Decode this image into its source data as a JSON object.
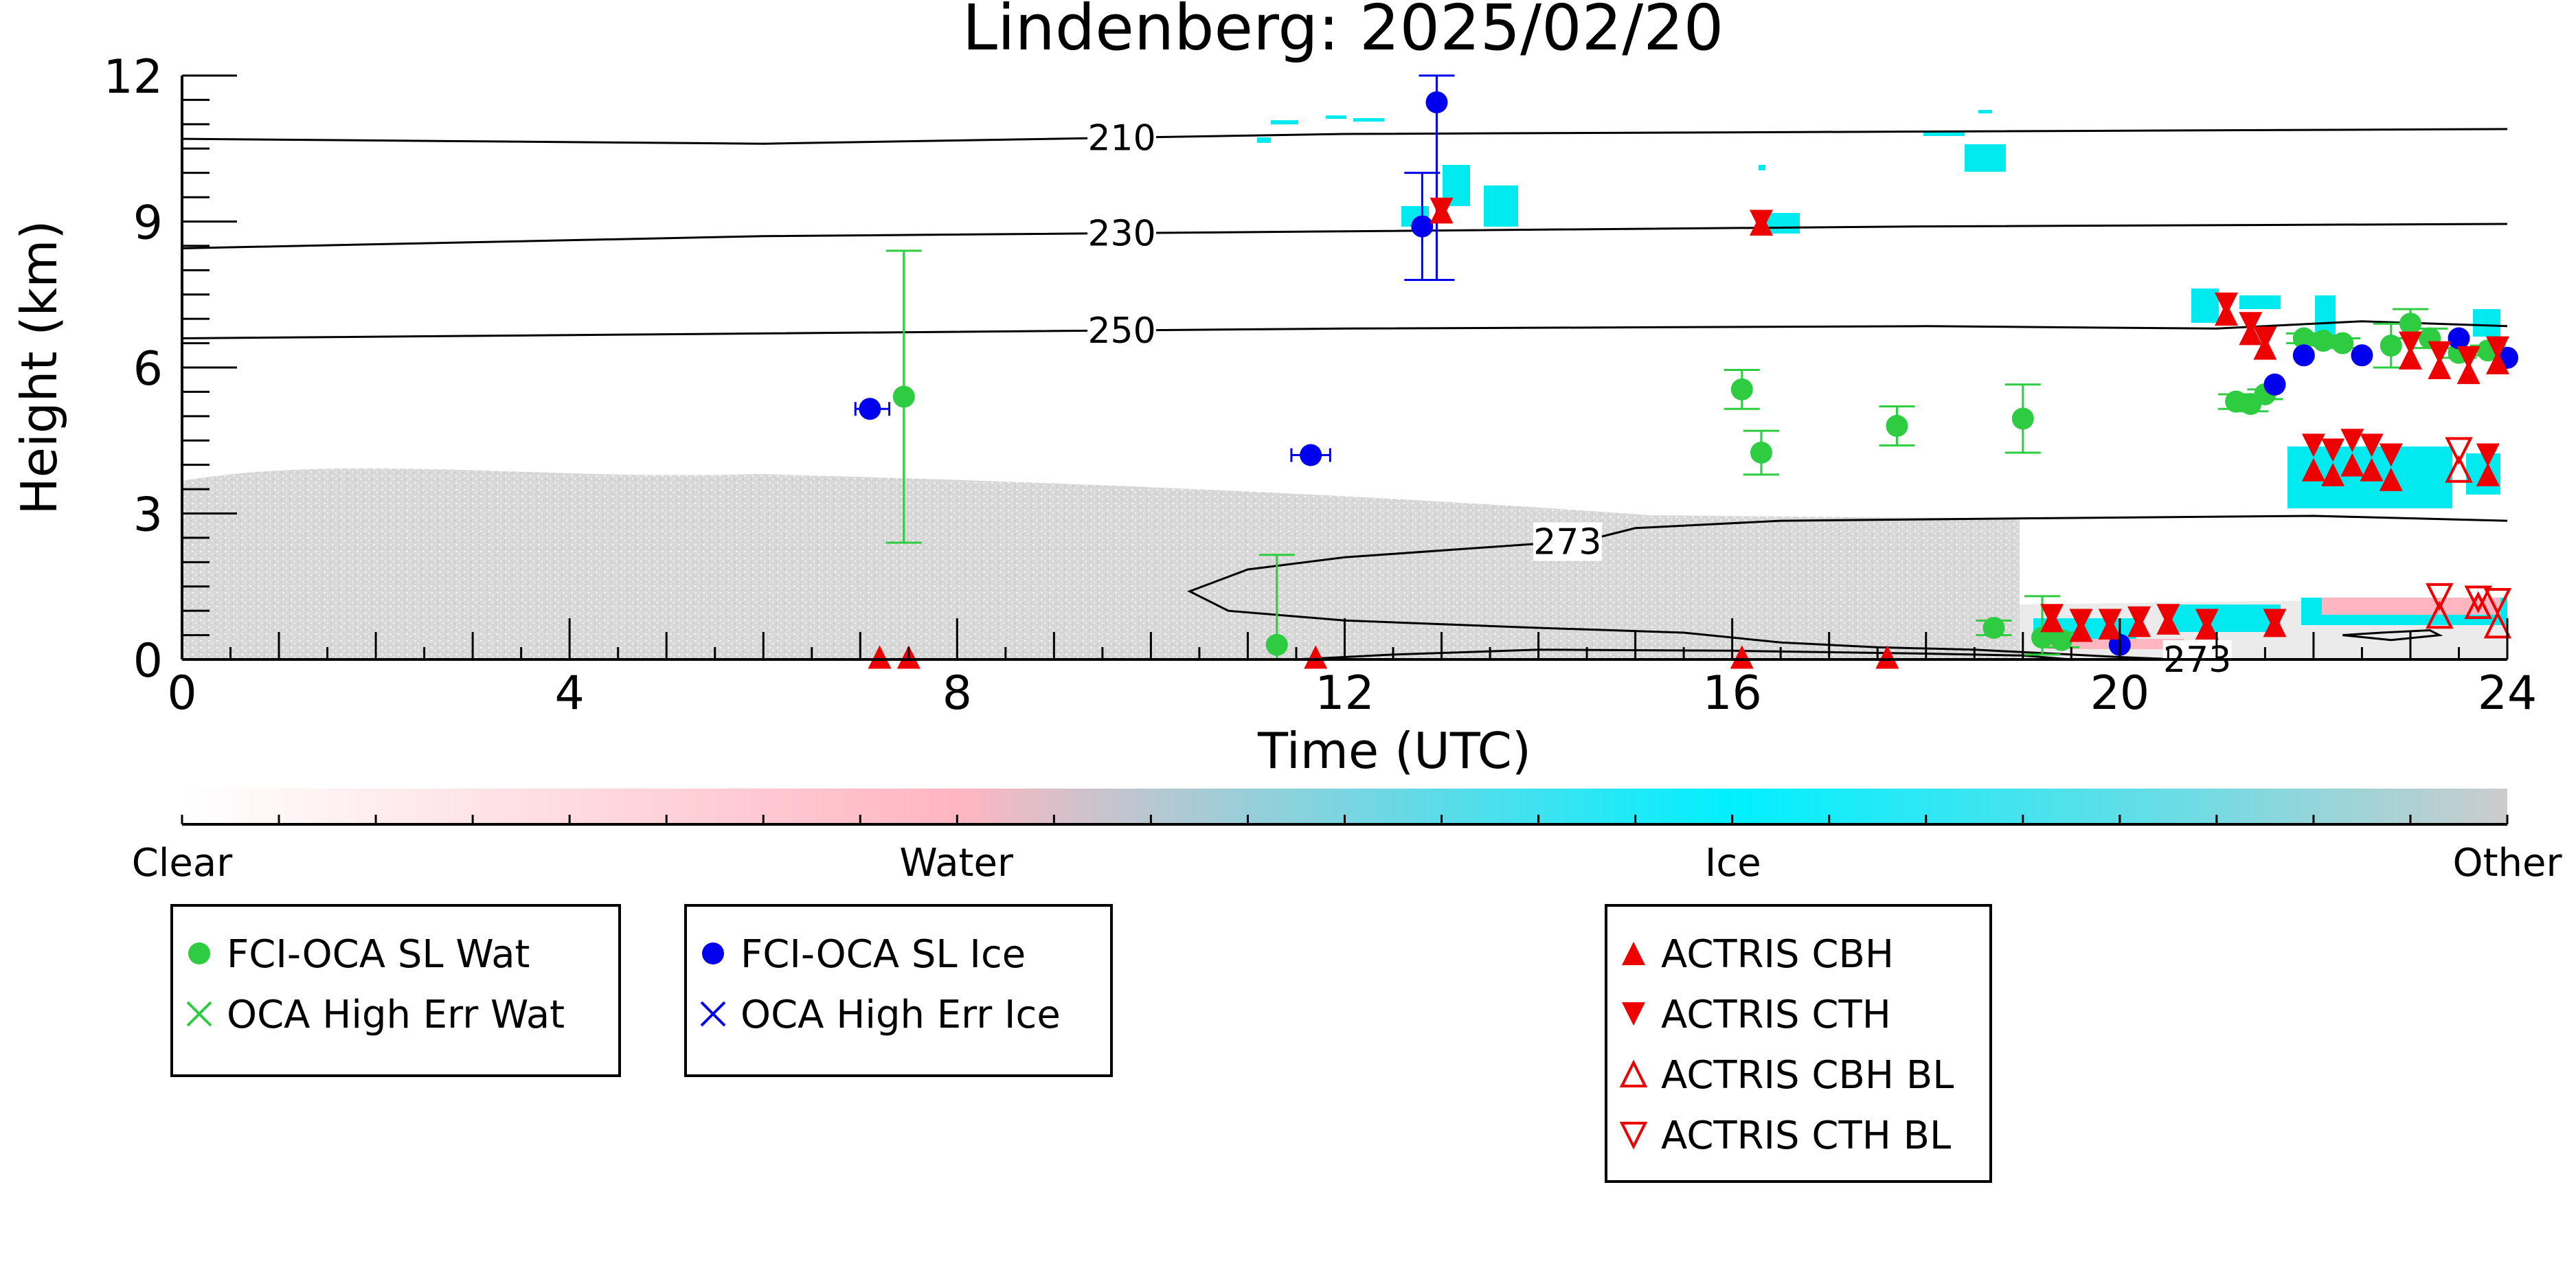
{
  "chart_data": {
    "type": "scatter",
    "title": "Lindenberg: 2025/02/20",
    "xlabel": "Time (UTC)",
    "ylabel": "Height (km)",
    "xlim": [
      0,
      24
    ],
    "ylim": [
      0,
      12
    ],
    "x_ticks": [
      0,
      4,
      8,
      12,
      16,
      20,
      24
    ],
    "y_ticks": [
      0,
      3,
      6,
      9,
      12
    ],
    "colorbar": {
      "labels": [
        {
          "text": "Clear",
          "pos": 0.0
        },
        {
          "text": "Water",
          "pos": 0.333
        },
        {
          "text": "Ice",
          "pos": 0.667
        },
        {
          "text": "Other",
          "pos": 1.0
        }
      ],
      "stops": [
        {
          "pos": 0.0,
          "color": "#ffffff"
        },
        {
          "pos": 0.333,
          "color": "#ffb6c1"
        },
        {
          "pos": 0.42,
          "color": "#b4c8d2"
        },
        {
          "pos": 0.667,
          "color": "#00f0ff"
        },
        {
          "pos": 0.85,
          "color": "#66dde6"
        },
        {
          "pos": 1.0,
          "color": "#cccccc"
        }
      ]
    },
    "contours": [
      {
        "label": "210",
        "label_x": 9.7,
        "points": [
          [
            0,
            10.7
          ],
          [
            6,
            10.6
          ],
          [
            12,
            10.8
          ],
          [
            18,
            10.85
          ],
          [
            24,
            10.9
          ]
        ]
      },
      {
        "label": "230",
        "label_x": 9.7,
        "points": [
          [
            0,
            8.45
          ],
          [
            6,
            8.7
          ],
          [
            12,
            8.8
          ],
          [
            18,
            8.9
          ],
          [
            24,
            8.95
          ]
        ]
      },
      {
        "label": "250",
        "label_x": 9.7,
        "points": [
          [
            0,
            6.6
          ],
          [
            6,
            6.7
          ],
          [
            12,
            6.8
          ],
          [
            18,
            6.85
          ],
          [
            21,
            6.8
          ],
          [
            22.5,
            6.95
          ],
          [
            24,
            6.85
          ]
        ]
      },
      {
        "label": "273",
        "label_x": 14.3,
        "points": [
          [
            24,
            2.85
          ],
          [
            22,
            2.95
          ],
          [
            19,
            2.9
          ],
          [
            16.5,
            2.85
          ],
          [
            15,
            2.7
          ],
          [
            14.5,
            2.45
          ],
          [
            12,
            2.1
          ],
          [
            11,
            1.85
          ],
          [
            10.4,
            1.4
          ],
          [
            10.8,
            1.0
          ],
          [
            12,
            0.8
          ],
          [
            14,
            0.65
          ],
          [
            15.5,
            0.55
          ],
          [
            16.5,
            0.35
          ],
          [
            17.5,
            0.25
          ],
          [
            18.5,
            0.2
          ],
          [
            19.5,
            0.1
          ],
          [
            20,
            0.05
          ],
          [
            20.6,
            0.0
          ]
        ]
      },
      {
        "label": "273",
        "label_x": 20.8,
        "points": [
          [
            11.5,
            0.0
          ],
          [
            12.5,
            0.1
          ],
          [
            14,
            0.2
          ],
          [
            16,
            0.18
          ],
          [
            18,
            0.12
          ],
          [
            19,
            0.08
          ],
          [
            19.5,
            0.0
          ]
        ]
      },
      {
        "label": "",
        "label_x": null,
        "points": [
          [
            22.3,
            0.5
          ],
          [
            22.7,
            0.55
          ],
          [
            23.2,
            0.6
          ],
          [
            23.3,
            0.5
          ],
          [
            22.8,
            0.4
          ],
          [
            22.3,
            0.5
          ]
        ]
      }
    ],
    "series": [
      {
        "name": "FCI-OCA SL Wat",
        "color": "#2ecc40",
        "marker": "circle",
        "points": [
          {
            "x": 7.45,
            "y": 5.4,
            "lo": 2.4,
            "hi": 8.4
          },
          {
            "x": 11.3,
            "y": 0.3,
            "lo": 0.0,
            "hi": 2.15
          },
          {
            "x": 16.1,
            "y": 5.55,
            "lo": 5.15,
            "hi": 5.95
          },
          {
            "x": 16.3,
            "y": 4.25,
            "lo": 3.8,
            "hi": 4.7
          },
          {
            "x": 17.7,
            "y": 4.8,
            "lo": 4.4,
            "hi": 5.2
          },
          {
            "x": 19.0,
            "y": 4.95,
            "lo": 4.25,
            "hi": 5.65
          },
          {
            "x": 18.7,
            "y": 0.65,
            "lo": 0.5,
            "hi": 0.8
          },
          {
            "x": 19.2,
            "y": 0.45,
            "lo": 0.1,
            "hi": 1.3
          },
          {
            "x": 19.4,
            "y": 0.4,
            "lo": 0.25,
            "hi": 0.55
          },
          {
            "x": 21.2,
            "y": 5.3,
            "lo": 5.15,
            "hi": 5.45
          },
          {
            "x": 21.35,
            "y": 5.25,
            "lo": 5.1,
            "hi": 5.4
          },
          {
            "x": 21.5,
            "y": 5.45,
            "lo": 5.35,
            "hi": 5.55
          },
          {
            "x": 21.9,
            "y": 6.6,
            "lo": 6.5,
            "hi": 6.7
          },
          {
            "x": 22.1,
            "y": 6.55,
            "lo": 6.45,
            "hi": 6.65
          },
          {
            "x": 22.3,
            "y": 6.5,
            "lo": 6.4,
            "hi": 6.6
          },
          {
            "x": 22.8,
            "y": 6.45,
            "lo": 6.0,
            "hi": 6.9
          },
          {
            "x": 23.0,
            "y": 6.9,
            "lo": 6.6,
            "hi": 7.2
          },
          {
            "x": 23.2,
            "y": 6.6,
            "lo": 6.4,
            "hi": 6.8
          },
          {
            "x": 23.5,
            "y": 6.3,
            "lo": 6.2,
            "hi": 6.4
          },
          {
            "x": 23.8,
            "y": 6.35,
            "lo": 6.25,
            "hi": 6.45
          }
        ]
      },
      {
        "name": "OCA High Err Wat",
        "color": "#2ecc40",
        "marker": "x",
        "points": []
      },
      {
        "name": "FCI-OCA SL Ice",
        "color": "#0000ee",
        "marker": "circle",
        "points": [
          {
            "x": 7.1,
            "y": 5.15,
            "xlo": 6.95,
            "xhi": 7.3
          },
          {
            "x": 11.65,
            "y": 4.2,
            "xlo": 11.45,
            "xhi": 11.85
          },
          {
            "x": 12.8,
            "y": 8.9,
            "lo": 7.8,
            "hi": 10.0
          },
          {
            "x": 12.95,
            "y": 11.45,
            "lo": 7.8,
            "hi": 12.0
          },
          {
            "x": 20.0,
            "y": 0.3
          },
          {
            "x": 21.6,
            "y": 5.65
          },
          {
            "x": 21.9,
            "y": 6.25
          },
          {
            "x": 22.5,
            "y": 6.25
          },
          {
            "x": 23.5,
            "y": 6.6
          },
          {
            "x": 24.0,
            "y": 6.2
          }
        ]
      },
      {
        "name": "OCA High Err Ice",
        "color": "#0000ee",
        "marker": "x",
        "points": []
      },
      {
        "name": "ACTRIS CBH",
        "color": "#ee0000",
        "marker": "triangle-up",
        "points": [
          {
            "x": 7.2,
            "y": 0.05
          },
          {
            "x": 7.5,
            "y": 0.05
          },
          {
            "x": 11.7,
            "y": 0.05
          },
          {
            "x": 13.0,
            "y": 9.2
          },
          {
            "x": 16.3,
            "y": 8.95
          },
          {
            "x": 16.1,
            "y": 0.05
          },
          {
            "x": 17.6,
            "y": 0.05
          },
          {
            "x": 19.3,
            "y": 0.8
          },
          {
            "x": 19.6,
            "y": 0.6
          },
          {
            "x": 19.9,
            "y": 0.65
          },
          {
            "x": 20.2,
            "y": 0.7
          },
          {
            "x": 20.5,
            "y": 0.75
          },
          {
            "x": 20.9,
            "y": 0.65
          },
          {
            "x": 21.6,
            "y": 0.7
          },
          {
            "x": 21.1,
            "y": 7.1
          },
          {
            "x": 21.35,
            "y": 6.7
          },
          {
            "x": 21.5,
            "y": 6.4
          },
          {
            "x": 22.0,
            "y": 3.9
          },
          {
            "x": 22.2,
            "y": 3.8
          },
          {
            "x": 22.4,
            "y": 4.0
          },
          {
            "x": 22.6,
            "y": 3.9
          },
          {
            "x": 22.8,
            "y": 3.7
          },
          {
            "x": 23.0,
            "y": 6.2
          },
          {
            "x": 23.3,
            "y": 6.0
          },
          {
            "x": 23.6,
            "y": 5.9
          },
          {
            "x": 23.9,
            "y": 6.1
          },
          {
            "x": 23.8,
            "y": 3.8
          }
        ]
      },
      {
        "name": "ACTRIS CTH",
        "color": "#ee0000",
        "marker": "triangle-down",
        "points": [
          {
            "x": 13.0,
            "y": 9.25
          },
          {
            "x": 16.3,
            "y": 9.0
          },
          {
            "x": 19.3,
            "y": 0.9
          },
          {
            "x": 19.6,
            "y": 0.8
          },
          {
            "x": 19.9,
            "y": 0.8
          },
          {
            "x": 20.2,
            "y": 0.85
          },
          {
            "x": 20.5,
            "y": 0.9
          },
          {
            "x": 20.9,
            "y": 0.8
          },
          {
            "x": 21.6,
            "y": 0.8
          },
          {
            "x": 21.1,
            "y": 7.3
          },
          {
            "x": 21.35,
            "y": 6.9
          },
          {
            "x": 21.5,
            "y": 6.6
          },
          {
            "x": 22.0,
            "y": 4.4
          },
          {
            "x": 22.2,
            "y": 4.3
          },
          {
            "x": 22.4,
            "y": 4.5
          },
          {
            "x": 22.6,
            "y": 4.4
          },
          {
            "x": 22.8,
            "y": 4.2
          },
          {
            "x": 23.0,
            "y": 6.5
          },
          {
            "x": 23.3,
            "y": 6.3
          },
          {
            "x": 23.6,
            "y": 6.2
          },
          {
            "x": 23.9,
            "y": 6.4
          },
          {
            "x": 23.8,
            "y": 4.2
          }
        ]
      },
      {
        "name": "ACTRIS CBH BL",
        "color": "#ee0000",
        "marker": "triangle-up-open",
        "points": [
          {
            "x": 23.3,
            "y": 0.9
          },
          {
            "x": 23.5,
            "y": 3.9
          },
          {
            "x": 23.9,
            "y": 0.7
          },
          {
            "x": 23.7,
            "y": 1.1
          }
        ]
      },
      {
        "name": "ACTRIS CTH BL",
        "color": "#ee0000",
        "marker": "triangle-down-open",
        "points": [
          {
            "x": 23.3,
            "y": 1.3
          },
          {
            "x": 23.5,
            "y": 4.3
          },
          {
            "x": 23.9,
            "y": 1.2
          },
          {
            "x": 23.7,
            "y": 1.25
          }
        ]
      }
    ],
    "legends": [
      {
        "items": [
          "FCI-OCA SL Wat",
          "OCA High Err Wat"
        ]
      },
      {
        "items": [
          "FCI-OCA SL Ice",
          "OCA High Err Ice"
        ]
      },
      {
        "items": [
          "ACTRIS CBH",
          "ACTRIS CTH",
          "ACTRIS CBH BL",
          "ACTRIS CTH BL"
        ]
      }
    ]
  }
}
